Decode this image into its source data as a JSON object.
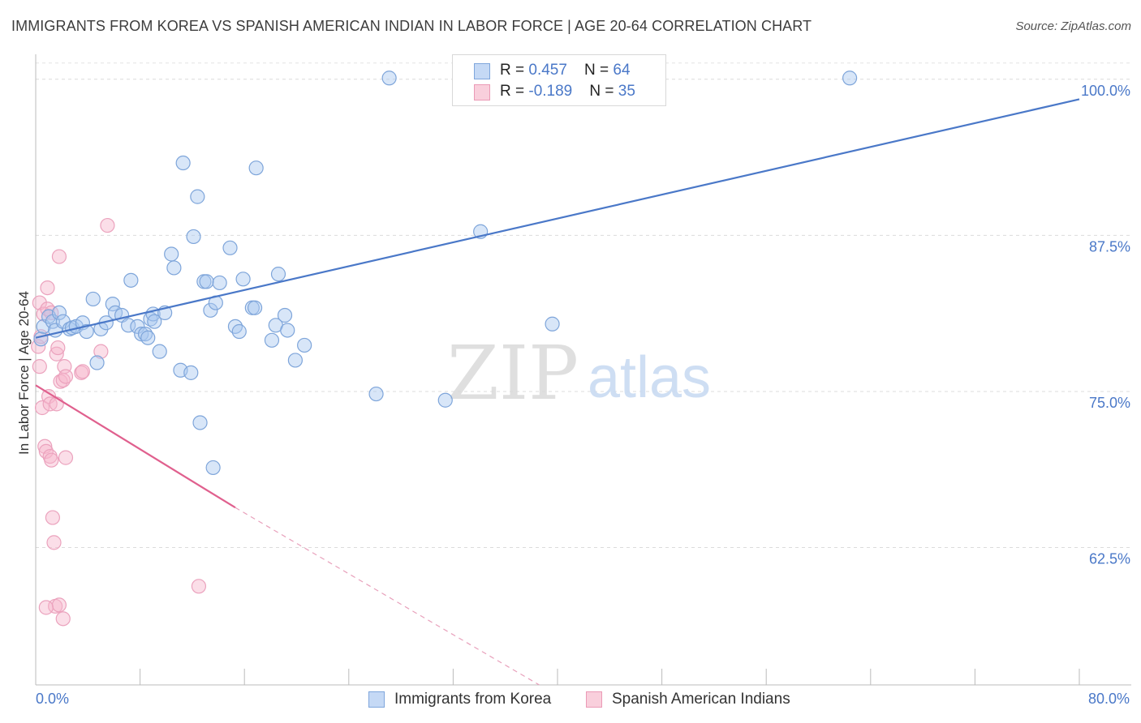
{
  "title": "IMMIGRANTS FROM KOREA VS SPANISH AMERICAN INDIAN IN LABOR FORCE | AGE 20-64 CORRELATION CHART",
  "source": "Source: ZipAtlas.com",
  "watermark": {
    "zip": "ZIP",
    "atlas": "atlas"
  },
  "colors": {
    "blue": "#4a78c8",
    "blue_fill": "#a9c8f0",
    "pink": "#e0608e",
    "pink_fill": "#f6b6cb",
    "grid": "#dddddd"
  },
  "legend": {
    "rows": [
      {
        "r_label": "R = ",
        "r_value": "0.457",
        "n_label": "N = ",
        "n_value": "64"
      },
      {
        "r_label": "R = ",
        "r_value": "-0.189",
        "n_label": "N = ",
        "n_value": "35"
      }
    ]
  },
  "chart_data": {
    "type": "scatter",
    "title": "IMMIGRANTS FROM KOREA VS SPANISH AMERICAN INDIAN IN LABOR FORCE | AGE 20-64 CORRELATION CHART",
    "xlabel": "",
    "ylabel": "In Labor Force | Age 20-64",
    "xlim": [
      0,
      80
    ],
    "ylim": [
      51.5,
      102
    ],
    "x_tick_labels": [
      "0.0%",
      "80.0%"
    ],
    "y_ticks": [
      62.5,
      75.0,
      87.5,
      100.0
    ],
    "y_tick_labels": [
      "62.5%",
      "75.0%",
      "87.5%",
      "100.0%"
    ],
    "series": [
      {
        "name": "Immigrants from Korea",
        "color": "#4a78c8",
        "r": 0.457,
        "n": 64,
        "trend": {
          "x": [
            0,
            80
          ],
          "y": [
            79.3,
            98.4
          ]
        },
        "points": [
          [
            0.4,
            79.2
          ],
          [
            0.6,
            80.2
          ],
          [
            1.0,
            81.0
          ],
          [
            1.3,
            80.6
          ],
          [
            1.5,
            79.9
          ],
          [
            1.8,
            81.3
          ],
          [
            2.1,
            80.6
          ],
          [
            2.6,
            80.0
          ],
          [
            2.8,
            80.1
          ],
          [
            3.1,
            80.2
          ],
          [
            3.6,
            80.5
          ],
          [
            3.9,
            79.8
          ],
          [
            4.4,
            82.4
          ],
          [
            4.7,
            77.3
          ],
          [
            5.0,
            80.0
          ],
          [
            5.4,
            80.5
          ],
          [
            5.9,
            82.0
          ],
          [
            6.1,
            81.3
          ],
          [
            6.6,
            81.1
          ],
          [
            7.1,
            80.3
          ],
          [
            7.3,
            83.9
          ],
          [
            7.8,
            80.2
          ],
          [
            8.1,
            79.6
          ],
          [
            8.4,
            79.6
          ],
          [
            8.6,
            79.3
          ],
          [
            8.8,
            80.8
          ],
          [
            9.0,
            81.2
          ],
          [
            9.1,
            80.6
          ],
          [
            9.5,
            78.2
          ],
          [
            9.9,
            81.3
          ],
          [
            10.4,
            86.0
          ],
          [
            10.6,
            84.9
          ],
          [
            11.1,
            76.7
          ],
          [
            11.3,
            93.3
          ],
          [
            11.9,
            76.5
          ],
          [
            12.1,
            87.4
          ],
          [
            12.4,
            90.6
          ],
          [
            12.6,
            72.5
          ],
          [
            12.9,
            83.8
          ],
          [
            13.1,
            83.8
          ],
          [
            13.4,
            81.5
          ],
          [
            13.8,
            82.1
          ],
          [
            13.6,
            68.9
          ],
          [
            14.1,
            83.7
          ],
          [
            14.9,
            86.5
          ],
          [
            15.3,
            80.2
          ],
          [
            15.6,
            79.8
          ],
          [
            15.9,
            84.0
          ],
          [
            16.6,
            81.7
          ],
          [
            16.8,
            81.7
          ],
          [
            16.9,
            92.9
          ],
          [
            18.1,
            79.1
          ],
          [
            18.4,
            80.3
          ],
          [
            18.6,
            84.4
          ],
          [
            19.1,
            81.1
          ],
          [
            19.3,
            79.9
          ],
          [
            19.9,
            77.5
          ],
          [
            20.6,
            78.7
          ],
          [
            27.1,
            100.1
          ],
          [
            26.1,
            74.8
          ],
          [
            31.4,
            74.3
          ],
          [
            34.1,
            87.8
          ],
          [
            39.6,
            80.4
          ],
          [
            62.4,
            100.1
          ]
        ]
      },
      {
        "name": "Spanish American Indians",
        "color": "#e0608e",
        "r": -0.189,
        "n": 35,
        "trend": {
          "x": [
            0,
            15.3
          ],
          "y": [
            75.5,
            65.7
          ]
        },
        "trend_dashed": {
          "x": [
            15.3,
            38.6
          ],
          "y": [
            65.7,
            51.5
          ]
        },
        "points": [
          [
            0.2,
            78.6
          ],
          [
            0.3,
            77.0
          ],
          [
            0.3,
            82.1
          ],
          [
            0.4,
            79.4
          ],
          [
            0.5,
            73.7
          ],
          [
            0.6,
            81.2
          ],
          [
            0.7,
            70.6
          ],
          [
            0.8,
            70.2
          ],
          [
            0.9,
            81.6
          ],
          [
            0.9,
            83.3
          ],
          [
            1.0,
            74.6
          ],
          [
            1.1,
            74.0
          ],
          [
            1.1,
            69.8
          ],
          [
            1.2,
            69.5
          ],
          [
            1.3,
            64.9
          ],
          [
            1.4,
            62.9
          ],
          [
            1.5,
            57.8
          ],
          [
            1.6,
            74.0
          ],
          [
            1.6,
            78.0
          ],
          [
            1.7,
            78.5
          ],
          [
            1.8,
            85.8
          ],
          [
            1.8,
            57.9
          ],
          [
            1.9,
            75.8
          ],
          [
            2.1,
            75.9
          ],
          [
            2.1,
            56.8
          ],
          [
            2.2,
            77.0
          ],
          [
            2.3,
            76.2
          ],
          [
            2.3,
            69.7
          ],
          [
            3.5,
            76.5
          ],
          [
            3.6,
            76.6
          ],
          [
            5.0,
            78.2
          ],
          [
            5.5,
            88.3
          ],
          [
            12.5,
            59.4
          ],
          [
            0.8,
            57.7
          ],
          [
            1.2,
            81.3
          ]
        ]
      }
    ]
  },
  "bottom_legend": [
    "Immigrants from Korea",
    "Spanish American Indians"
  ]
}
